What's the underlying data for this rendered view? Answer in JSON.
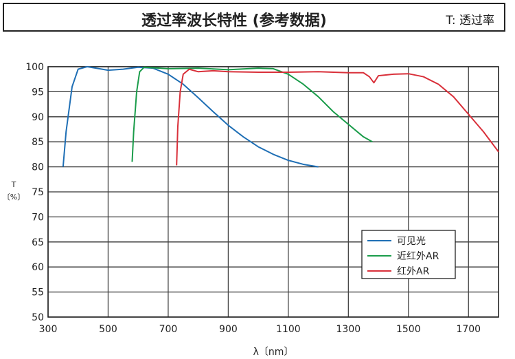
{
  "header": {
    "title": "透过率波长特性 (参考数据)",
    "note": "T: 透过率"
  },
  "chart_data": {
    "type": "line",
    "xlabel": "λ〔nm〕",
    "ylabel": "T〔%〕",
    "ylabel_lines": [
      "T",
      "〔%〕"
    ],
    "xlim": [
      300,
      1800
    ],
    "ylim": [
      50,
      100
    ],
    "xticks": [
      300,
      500,
      700,
      900,
      1100,
      1300,
      1500,
      1700
    ],
    "yticks": [
      50,
      55,
      60,
      65,
      70,
      75,
      80,
      85,
      90,
      95,
      100
    ],
    "grid": true,
    "legend_placement": "bottom-right",
    "series": [
      {
        "name": "可见光",
        "color": "#1f6fb5",
        "points": [
          [
            350,
            80
          ],
          [
            360,
            87
          ],
          [
            380,
            96
          ],
          [
            400,
            99.5
          ],
          [
            430,
            100
          ],
          [
            470,
            99.6
          ],
          [
            500,
            99.3
          ],
          [
            550,
            99.5
          ],
          [
            600,
            99.9
          ],
          [
            650,
            99.7
          ],
          [
            700,
            98.5
          ],
          [
            750,
            96.5
          ],
          [
            800,
            93.8
          ],
          [
            850,
            91
          ],
          [
            900,
            88.3
          ],
          [
            950,
            86
          ],
          [
            1000,
            84
          ],
          [
            1050,
            82.5
          ],
          [
            1100,
            81.3
          ],
          [
            1150,
            80.5
          ],
          [
            1200,
            80
          ]
        ]
      },
      {
        "name": "近红外AR",
        "color": "#1a9c4a",
        "points": [
          [
            580,
            81
          ],
          [
            585,
            87
          ],
          [
            595,
            95
          ],
          [
            605,
            99
          ],
          [
            620,
            99.9
          ],
          [
            700,
            99.6
          ],
          [
            800,
            99.7
          ],
          [
            900,
            99.4
          ],
          [
            1000,
            99.7
          ],
          [
            1050,
            99.6
          ],
          [
            1100,
            98.5
          ],
          [
            1150,
            96.5
          ],
          [
            1200,
            94
          ],
          [
            1250,
            91
          ],
          [
            1300,
            88.5
          ],
          [
            1350,
            86
          ],
          [
            1380,
            85
          ]
        ]
      },
      {
        "name": "红外AR",
        "color": "#d9303a",
        "points": [
          [
            728,
            80.3
          ],
          [
            732,
            88
          ],
          [
            740,
            95
          ],
          [
            750,
            98.5
          ],
          [
            770,
            99.5
          ],
          [
            800,
            99
          ],
          [
            850,
            99.2
          ],
          [
            900,
            99
          ],
          [
            1000,
            98.9
          ],
          [
            1100,
            98.9
          ],
          [
            1200,
            99
          ],
          [
            1300,
            98.8
          ],
          [
            1350,
            98.8
          ],
          [
            1370,
            98
          ],
          [
            1385,
            96.8
          ],
          [
            1400,
            98.2
          ],
          [
            1450,
            98.5
          ],
          [
            1500,
            98.6
          ],
          [
            1550,
            98
          ],
          [
            1600,
            96.5
          ],
          [
            1650,
            94
          ],
          [
            1700,
            90.5
          ],
          [
            1750,
            87
          ],
          [
            1800,
            83
          ]
        ]
      }
    ]
  }
}
